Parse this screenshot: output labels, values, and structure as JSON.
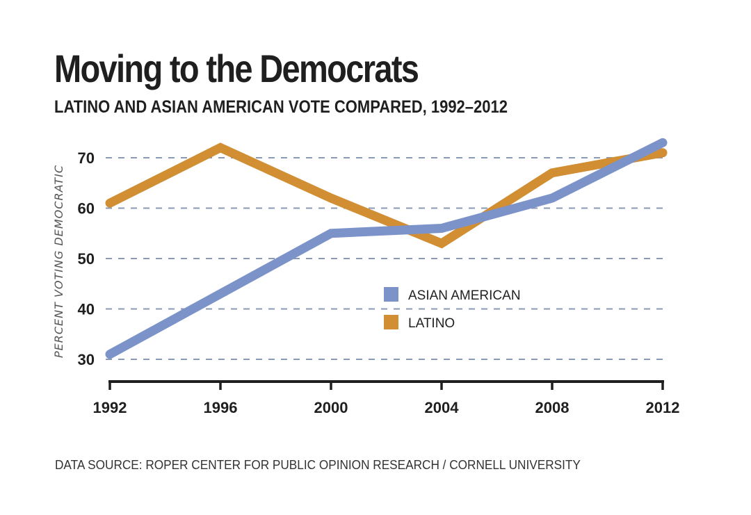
{
  "header": {
    "title": "Moving to the Democrats",
    "subtitle": "LATINO AND ASIAN AMERICAN VOTE COMPARED, 1992–2012"
  },
  "footer": {
    "source": "DATA SOURCE: ROPER CENTER FOR PUBLIC OPINION RESEARCH / CORNELL UNIVERSITY"
  },
  "chart_data": {
    "type": "line",
    "title": "Moving to the Democrats",
    "subtitle": "LATINO AND ASIAN AMERICAN VOTE COMPARED, 1992–2012",
    "xlabel": "",
    "ylabel": "PERCENT VOTING DEMOCRATIC",
    "x": [
      1992,
      1996,
      2000,
      2004,
      2008,
      2012
    ],
    "x_tick_labels": [
      "1992",
      "1996",
      "2000",
      "2004",
      "2008",
      "2012"
    ],
    "y_ticks": [
      30,
      40,
      50,
      60,
      70
    ],
    "y_tick_labels": [
      "30",
      "40",
      "50",
      "60",
      "70"
    ],
    "ylim": [
      30,
      73
    ],
    "grid": "horizontal-dashed",
    "legend_position": "center-right",
    "series": [
      {
        "name": "ASIAN AMERICAN",
        "color": "#7B93C9",
        "values": [
          31,
          43,
          55,
          56,
          62,
          73
        ]
      },
      {
        "name": "LATINO",
        "color": "#D18E33",
        "values": [
          61,
          72,
          62,
          53,
          67,
          71
        ]
      }
    ],
    "gridline_color": "#8A9AB5",
    "axis_color": "#1f1f1f"
  }
}
